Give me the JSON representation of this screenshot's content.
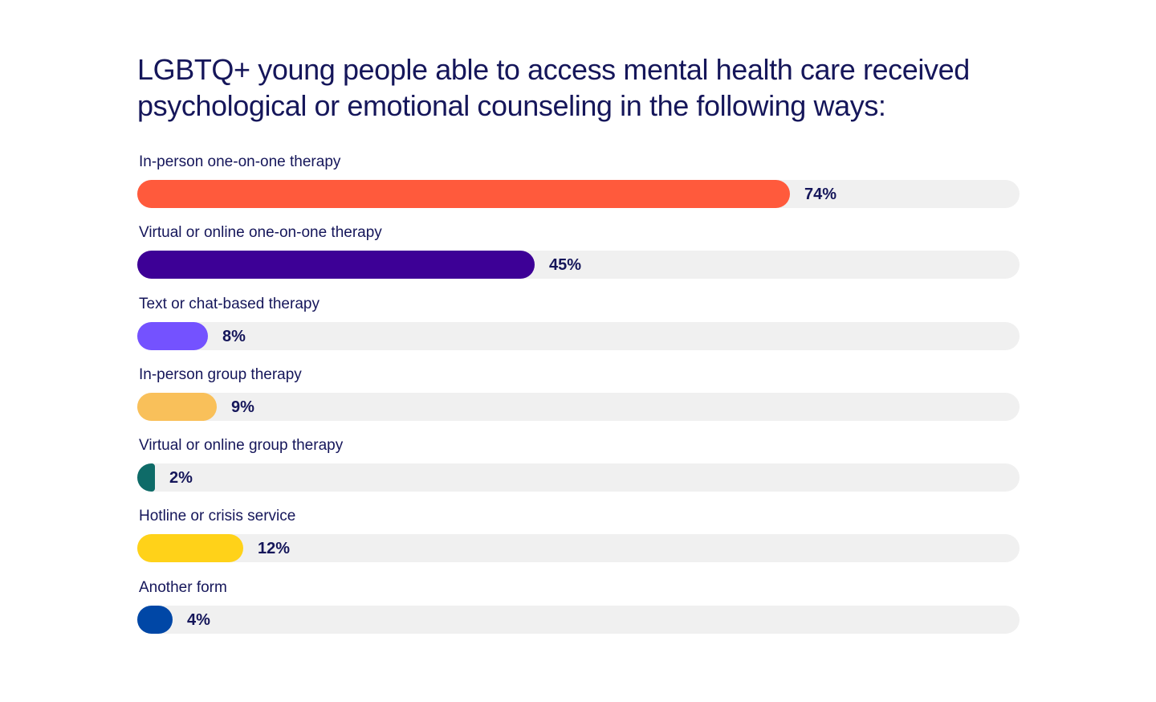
{
  "chart_data": {
    "type": "bar",
    "orientation": "horizontal",
    "title": "LGBTQ+ young people able to access mental health care received psychological or emotional counseling in the following ways:",
    "xlabel": "",
    "ylabel": "",
    "xlim": [
      0,
      100
    ],
    "grid": false,
    "legend": "none",
    "unit": "%",
    "categories": [
      "In-person one-on-one therapy",
      "Virtual or online one-on-one therapy",
      "Text or chat-based therapy",
      "In-person group therapy",
      "Virtual or online group therapy",
      "Hotline or crisis service",
      "Another form"
    ],
    "values": [
      74,
      45,
      8,
      9,
      2,
      12,
      4
    ],
    "value_labels": [
      "74%",
      "45%",
      "8%",
      "9%",
      "2%",
      "12%",
      "4%"
    ],
    "colors": [
      "#ff5a3c",
      "#3d0096",
      "#7452ff",
      "#f9c05a",
      "#0e6b68",
      "#ffd219",
      "#0047a6"
    ],
    "track_color": "#f0f0f0"
  }
}
